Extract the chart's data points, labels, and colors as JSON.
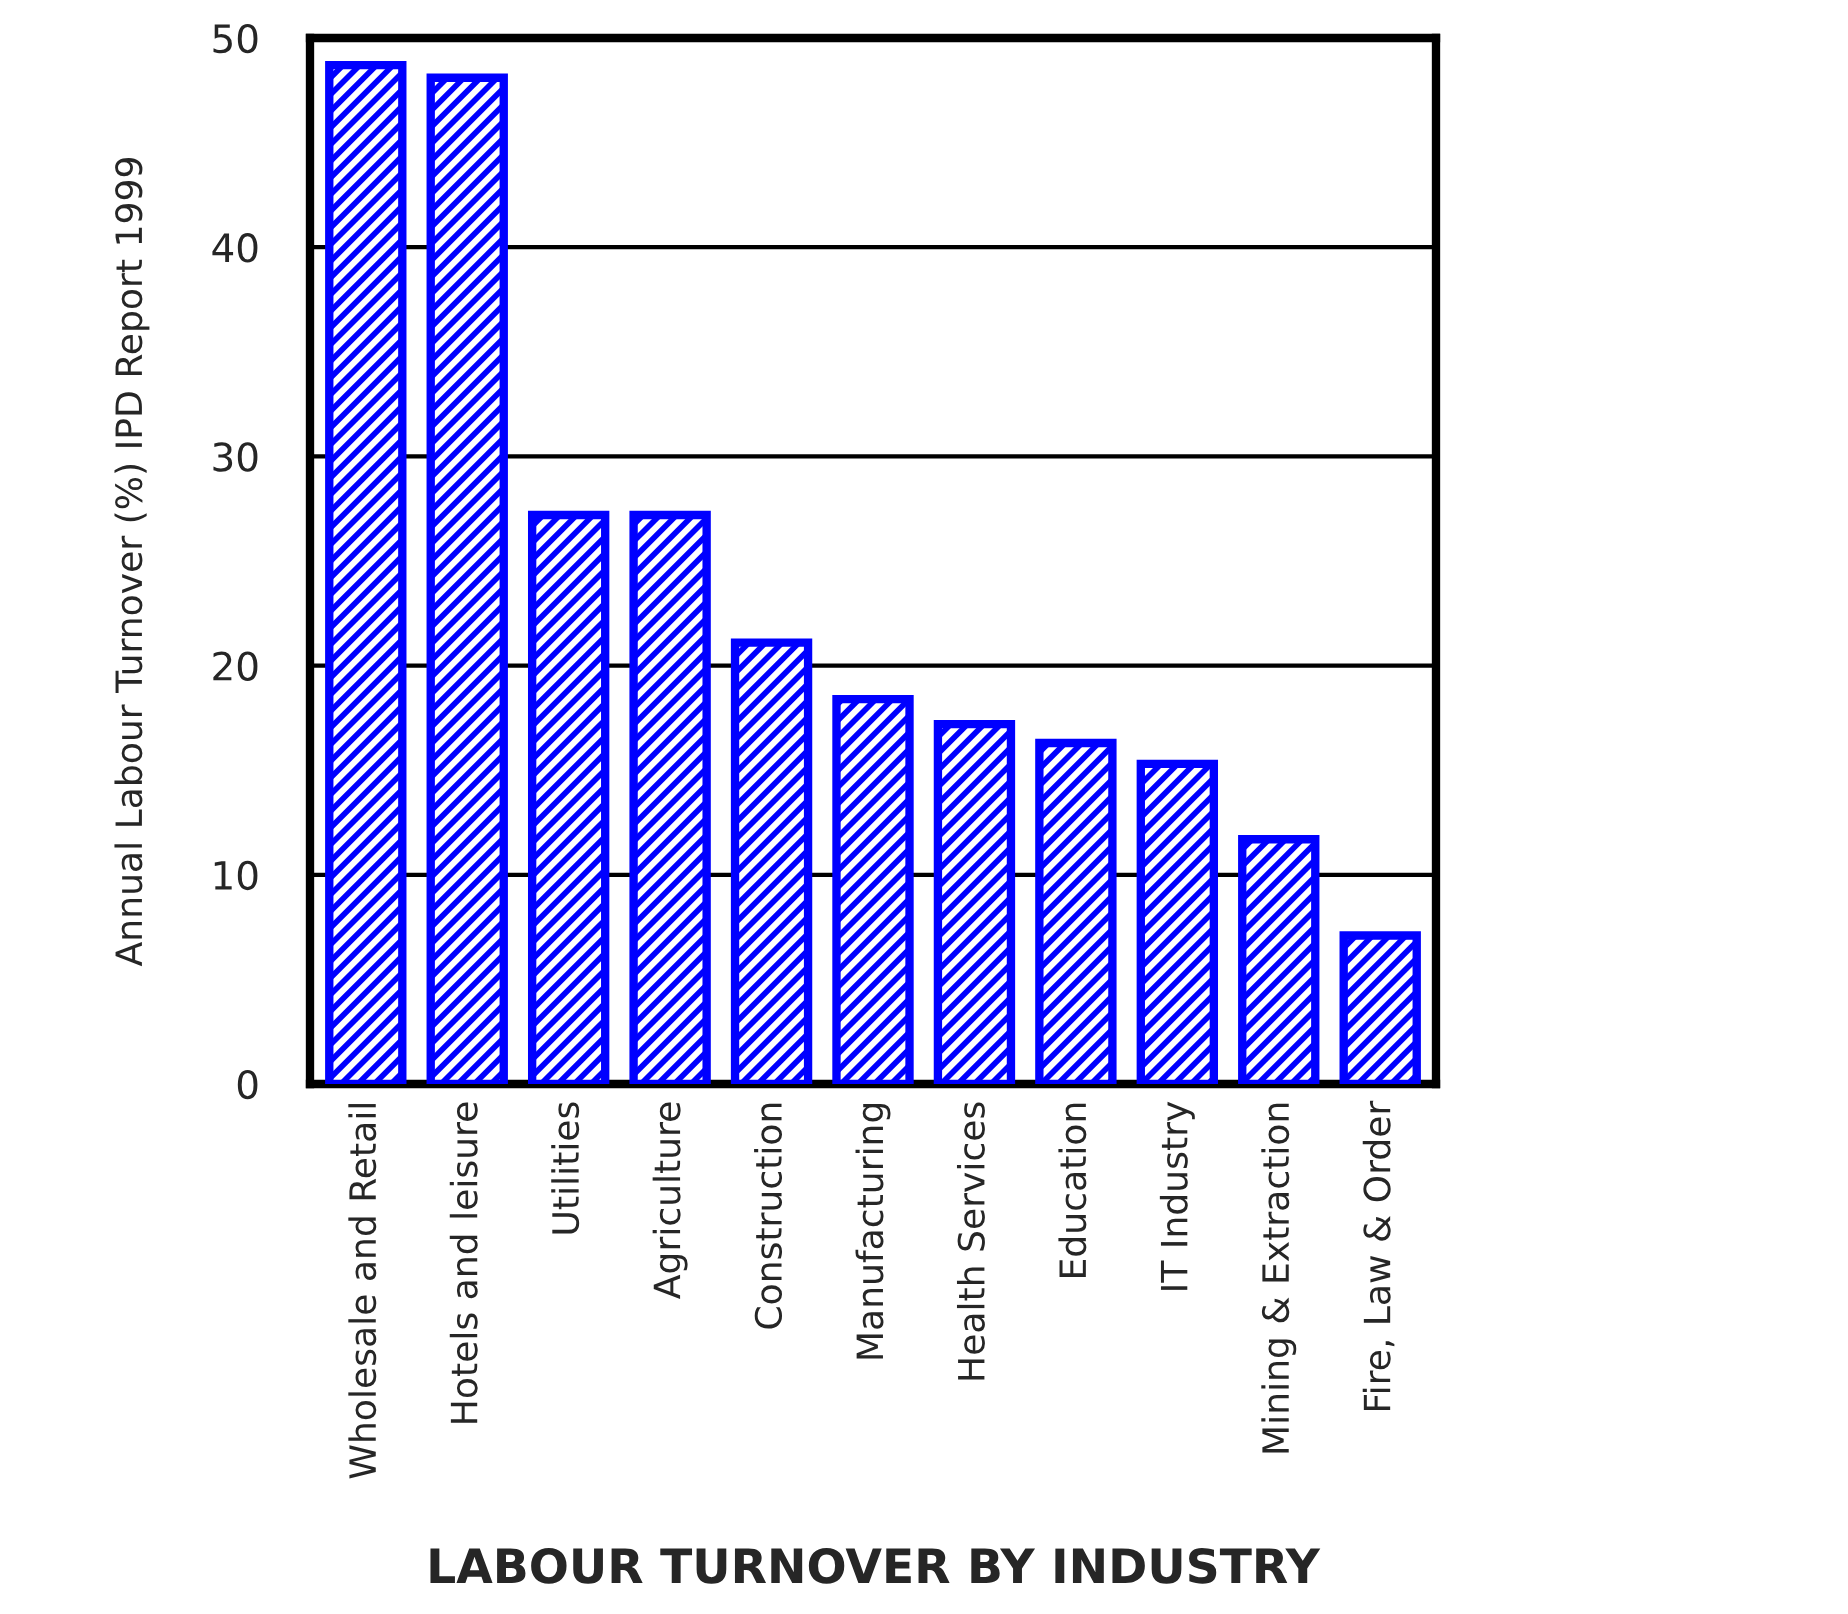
{
  "chart_data": {
    "type": "bar",
    "title": "LABOUR TURNOVER BY INDUSTRY",
    "ylabel": "Annual Labour Turnover (%) IPD Report 1999",
    "categories": [
      "Wholesale and Retail",
      "Hotels and leisure",
      "Utilities",
      "Agriculture",
      "Construction",
      "Manufacturing",
      "Health Services",
      "Education",
      "IT Industry",
      "Mining & Extraction",
      "Fire, Law & Order"
    ],
    "values": [
      48.7,
      48.1,
      27.2,
      27.2,
      21.1,
      18.4,
      17.2,
      16.3,
      15.3,
      11.7,
      7.1
    ],
    "color": "#0000ff",
    "ylim": [
      0,
      50
    ],
    "yticks": [
      0,
      10,
      20,
      30,
      40,
      50
    ],
    "grid": "y",
    "legend": false
  }
}
